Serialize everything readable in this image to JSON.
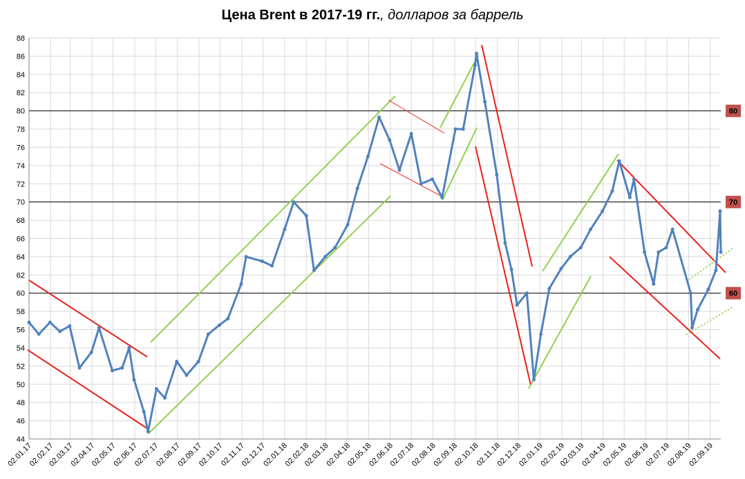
{
  "chart_data": {
    "type": "line",
    "title": "Цена Brent в 2017-19 гг.",
    "subtitle": ", долларов за баррель",
    "x": [
      "02.01.17",
      "16.01.17",
      "01.02.17",
      "15.02.17",
      "01.03.17",
      "15.03.17",
      "01.04.17",
      "12.04.17",
      "01.05.17",
      "15.05.17",
      "25.05.17",
      "01.06.17",
      "15.06.17",
      "21.06.17",
      "03.07.17",
      "15.07.17",
      "01.08.17",
      "15.08.17",
      "01.09.17",
      "15.09.17",
      "01.10.17",
      "13.10.17",
      "01.11.17",
      "08.11.17",
      "01.12.17",
      "15.12.17",
      "02.01.18",
      "15.01.18",
      "02.02.18",
      "13.02.18",
      "01.03.18",
      "15.03.18",
      "02.04.18",
      "16.04.18",
      "01.05.18",
      "17.05.18",
      "01.06.18",
      "15.06.18",
      "02.07.18",
      "16.07.18",
      "01.08.18",
      "15.08.18",
      "03.09.18",
      "14.09.18",
      "01.10.18",
      "03.10.18",
      "15.10.18",
      "01.11.18",
      "13.11.18",
      "22.11.18",
      "30.11.18",
      "14.12.18",
      "24.12.18",
      "03.01.19",
      "15.01.19",
      "01.02.19",
      "14.02.19",
      "01.03.19",
      "15.03.19",
      "01.04.19",
      "15.04.19",
      "25.04.19",
      "10.05.19",
      "16.05.19",
      "31.05.19",
      "13.06.19",
      "20.06.19",
      "01.07.19",
      "10.07.19",
      "05.08.19",
      "07.08.19",
      "15.08.19",
      "30.08.19",
      "10.09.19",
      "16.09.19",
      "17.09.19"
    ],
    "series": [
      {
        "name": "Brent",
        "color": "#4f81bd",
        "values": [
          56.8,
          55.5,
          56.8,
          55.8,
          56.4,
          51.8,
          53.5,
          56.2,
          51.5,
          51.8,
          54,
          50.5,
          47,
          44.8,
          49.5,
          48.5,
          52.5,
          51,
          52.5,
          55.5,
          56.5,
          57.2,
          61,
          64,
          63.5,
          63,
          67,
          70,
          68.5,
          62.5,
          64,
          65,
          67.5,
          71.5,
          75,
          79.3,
          76.8,
          73.5,
          77.5,
          72,
          72.5,
          70.5,
          78,
          78,
          85,
          86.3,
          81,
          73,
          65.5,
          62.6,
          58.7,
          60,
          50.5,
          55.5,
          60.5,
          62.7,
          64,
          65,
          67,
          69,
          71.2,
          74.5,
          70.5,
          72.5,
          64.5,
          61,
          64.5,
          65,
          67,
          60,
          56.2,
          58.2,
          60.4,
          62.5,
          69,
          64.5
        ]
      }
    ],
    "xlim": [
      "02.01.17",
      "17.09.19"
    ],
    "xticks": [
      "02.01.17",
      "02.02.17",
      "02.03.17",
      "02.04.17",
      "02.05.17",
      "02.06.17",
      "02.07.17",
      "02.08.17",
      "02.09.17",
      "02.10.17",
      "02.11.17",
      "02.12.17",
      "02.01.18",
      "02.02.18",
      "02.03.18",
      "02.04.18",
      "02.05.18",
      "02.06.18",
      "02.07.18",
      "02.08.18",
      "02.09.18",
      "02.10.18",
      "02.11.18",
      "02.12.18",
      "02.01.19",
      "02.02.19",
      "02.03.19",
      "02.04.19",
      "02.05.19",
      "02.06.19",
      "02.07.19",
      "02.08.19",
      "02.09.19"
    ],
    "ylim": [
      44,
      88
    ],
    "yticks": [
      44,
      46,
      48,
      50,
      52,
      54,
      56,
      58,
      60,
      62,
      64,
      66,
      68,
      70,
      72,
      74,
      76,
      78,
      80,
      82,
      84,
      86,
      88
    ],
    "grid": true,
    "reference_lines": [
      80,
      70,
      60
    ],
    "reference_color": "#c0504d"
  }
}
